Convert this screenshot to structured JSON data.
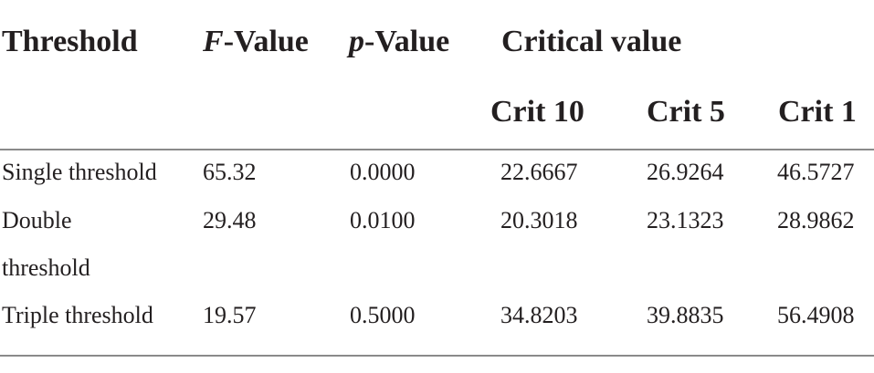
{
  "table": {
    "header": {
      "threshold": "Threshold",
      "f_value_italic": "F",
      "f_value_rest": "-Value",
      "p_value_italic": "p",
      "p_value_rest": "-Value",
      "critical_value": "Critical value",
      "crit10": "Crit 10",
      "crit5": "Crit 5",
      "crit1": "Crit 1"
    },
    "rows": [
      {
        "threshold": "Single threshold",
        "f_value": "65.32",
        "p_value": "0.0000",
        "crit10": "22.6667",
        "crit5": "26.9264",
        "crit1": "46.5727"
      },
      {
        "threshold_line1": "Double",
        "threshold_line2": "threshold",
        "f_value": "29.48",
        "p_value": "0.0100",
        "crit10": "20.3018",
        "crit5": "23.1323",
        "crit1": "28.9862"
      },
      {
        "threshold": "Triple threshold",
        "f_value": "19.57",
        "p_value": "0.5000",
        "crit10": "34.8203",
        "crit5": "39.8835",
        "crit1": "56.4908"
      }
    ]
  }
}
